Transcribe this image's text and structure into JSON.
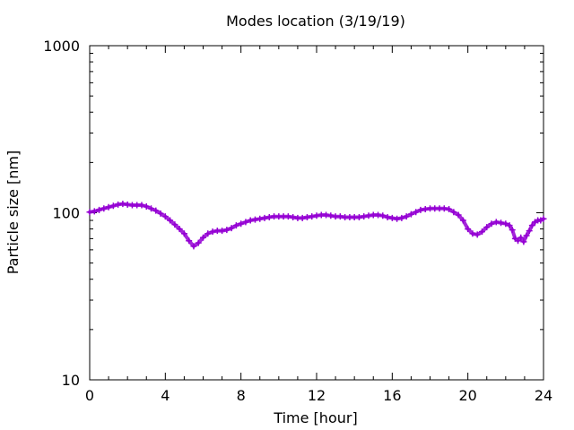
{
  "chart_data": {
    "type": "line",
    "title": "Modes location (3/19/19)",
    "xlabel": "Time [hour]",
    "ylabel": "Particle size [nm]",
    "xlim": [
      0,
      24
    ],
    "ylim": [
      10,
      1000
    ],
    "yscale": "log",
    "grid": false,
    "legend": "none",
    "xticks": [
      0,
      4,
      8,
      12,
      16,
      20,
      24
    ],
    "xtick_labels": [
      "0",
      "4",
      "8",
      "12",
      "16",
      "20",
      "24"
    ],
    "yticks": [
      10,
      100,
      1000
    ],
    "ytick_labels": [
      "10",
      "100",
      "1000"
    ],
    "series_color": "#9400d3",
    "marker": "plus",
    "series": [
      {
        "x": [
          0.0,
          0.25,
          0.5,
          0.75,
          1.0,
          1.25,
          1.5,
          1.75,
          2.0,
          2.25,
          2.5,
          2.75,
          3.0,
          3.25,
          3.5,
          3.75,
          4.0,
          4.25,
          4.5,
          4.75,
          5.0,
          5.25,
          5.5,
          5.75,
          6.0,
          6.25,
          6.5,
          6.75,
          7.0,
          7.25,
          7.5,
          7.75,
          8.0,
          8.25,
          8.5,
          8.75,
          9.0,
          9.25,
          9.5,
          9.75,
          10.0,
          10.25,
          10.5,
          10.75,
          11.0,
          11.25,
          11.5,
          11.75,
          12.0,
          12.25,
          12.5,
          12.75,
          13.0,
          13.25,
          13.5,
          13.75,
          14.0,
          14.25,
          14.5,
          14.75,
          15.0,
          15.25,
          15.5,
          15.75,
          16.0,
          16.25,
          16.5,
          16.75,
          17.0,
          17.25,
          17.5,
          17.75,
          18.0,
          18.25,
          18.5,
          18.75,
          19.0,
          19.25,
          19.5,
          19.75,
          20.0,
          20.25,
          20.5,
          20.75,
          21.0,
          21.25,
          21.5,
          21.75,
          22.0,
          22.2,
          22.35,
          22.5,
          22.65,
          22.8,
          22.95,
          23.1,
          23.25,
          23.4,
          23.55,
          23.7,
          23.85,
          24.0
        ],
        "y": [
          101,
          102,
          104,
          106,
          108,
          110,
          112,
          113,
          112,
          111,
          111,
          111,
          109,
          106,
          103,
          99,
          95,
          90,
          85,
          80,
          75,
          68,
          63,
          66,
          71,
          75,
          77,
          78,
          78,
          79,
          81,
          84,
          86,
          88,
          90,
          91,
          92,
          93,
          94,
          95,
          95,
          95,
          95,
          94,
          93,
          93,
          94,
          95,
          96,
          97,
          97,
          96,
          95,
          95,
          94,
          94,
          94,
          94,
          95,
          96,
          97,
          97,
          96,
          94,
          93,
          92,
          93,
          95,
          98,
          101,
          104,
          105,
          106,
          106,
          106,
          106,
          105,
          101,
          97,
          90,
          80,
          75,
          74,
          77,
          82,
          86,
          88,
          87,
          86,
          84,
          79,
          70,
          68,
          71,
          67,
          73,
          78,
          84,
          88,
          90,
          90,
          92
        ]
      }
    ]
  }
}
